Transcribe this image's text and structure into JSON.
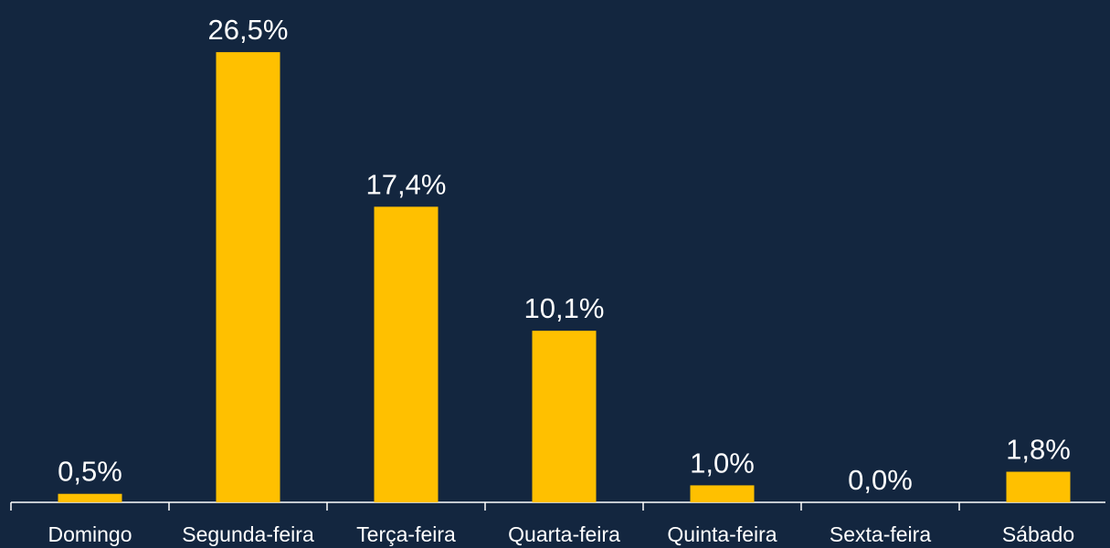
{
  "chart_data": {
    "type": "bar",
    "categories": [
      "Domingo",
      "Segunda-feira",
      "Terça-feira",
      "Quarta-feira",
      "Quinta-feira",
      "Sexta-feira",
      "Sábado"
    ],
    "values": [
      0.5,
      26.5,
      17.4,
      10.1,
      1.0,
      0.0,
      1.8
    ],
    "value_labels": [
      "0,5%",
      "26,5%",
      "17,4%",
      "10,1%",
      "1,0%",
      "0,0%",
      "1,8%"
    ],
    "color": "#ffc000"
  }
}
